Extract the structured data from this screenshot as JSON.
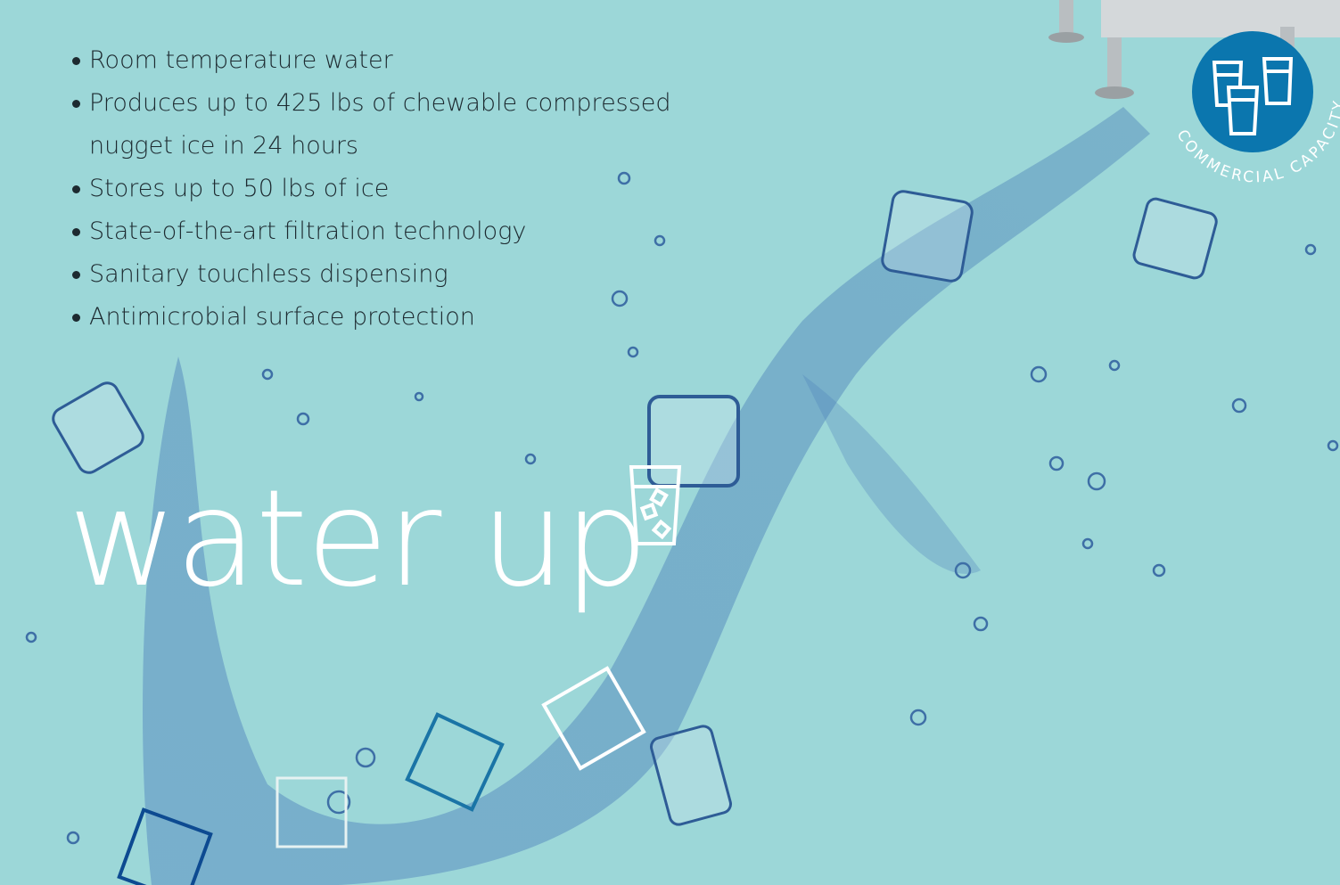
{
  "features": [
    "Room temperature water",
    "Produces up to 425 lbs of chewable compressed nugget ice in 24 hours",
    "Stores up to 50 lbs of ice",
    "State-of-the-art filtration technology",
    "Sanitary touchless dispensing",
    "Antimicrobial surface protection"
  ],
  "headline": "water up",
  "badge": {
    "label": "COMMERCIAL CAPACITY"
  }
}
